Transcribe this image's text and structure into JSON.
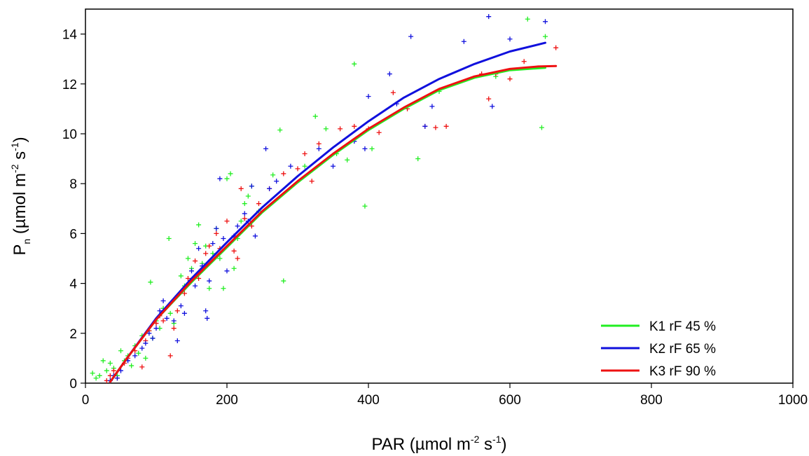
{
  "chart_data": {
    "type": "scatter",
    "xlabel": {
      "base": "PAR (µmol m",
      "exp1": "-2",
      "mid": " s",
      "exp2": "-1",
      "end": ")"
    },
    "ylabel": {
      "p": "P",
      "sub": "n",
      "rest": " (µmol m",
      "exp1": "-2",
      "mid": " s",
      "exp2": "-1",
      "end": ")"
    },
    "xlim": [
      0,
      1000
    ],
    "ylim": [
      0,
      15
    ],
    "xticks": [
      "0",
      "200",
      "400",
      "600",
      "800",
      "1000"
    ],
    "yticks": [
      "0",
      "2",
      "4",
      "6",
      "8",
      "10",
      "12",
      "14"
    ],
    "grid": false,
    "legend_position": "bottom-right",
    "series": [
      {
        "name": "K1 rF 45 %",
        "color": "#22ee22",
        "curve": [
          [
            35,
            0.05
          ],
          [
            60,
            1.05
          ],
          [
            100,
            2.55
          ],
          [
            150,
            4.05
          ],
          [
            200,
            5.45
          ],
          [
            250,
            6.85
          ],
          [
            300,
            8.05
          ],
          [
            350,
            9.15
          ],
          [
            400,
            10.15
          ],
          [
            450,
            11.0
          ],
          [
            500,
            11.75
          ],
          [
            550,
            12.25
          ],
          [
            600,
            12.55
          ],
          [
            650,
            12.65
          ]
        ],
        "points": [
          [
            10,
            0.4
          ],
          [
            15,
            0.2
          ],
          [
            20,
            0.3
          ],
          [
            25,
            0.9
          ],
          [
            30,
            0.5
          ],
          [
            35,
            0.8
          ],
          [
            40,
            0.6
          ],
          [
            45,
            0.3
          ],
          [
            50,
            1.3
          ],
          [
            55,
            0.9
          ],
          [
            60,
            1.1
          ],
          [
            65,
            0.7
          ],
          [
            70,
            1.5
          ],
          [
            75,
            1.2
          ],
          [
            80,
            1.9
          ],
          [
            85,
            1.0
          ],
          [
            90,
            2.1
          ],
          [
            92,
            4.05
          ],
          [
            95,
            1.8
          ],
          [
            100,
            2.5
          ],
          [
            105,
            2.2
          ],
          [
            110,
            3.0
          ],
          [
            118,
            5.8
          ],
          [
            120,
            2.8
          ],
          [
            125,
            2.4
          ],
          [
            130,
            3.5
          ],
          [
            135,
            4.3
          ],
          [
            140,
            3.9
          ],
          [
            145,
            5.0
          ],
          [
            150,
            4.6
          ],
          [
            155,
            5.6
          ],
          [
            160,
            6.35
          ],
          [
            165,
            4.8
          ],
          [
            170,
            5.5
          ],
          [
            175,
            3.8
          ],
          [
            180,
            5.2
          ],
          [
            185,
            6.2
          ],
          [
            190,
            5.0
          ],
          [
            195,
            3.8
          ],
          [
            200,
            8.2
          ],
          [
            205,
            8.4
          ],
          [
            210,
            4.6
          ],
          [
            215,
            5.8
          ],
          [
            220,
            6.5
          ],
          [
            225,
            7.2
          ],
          [
            230,
            7.5
          ],
          [
            235,
            7.9
          ],
          [
            245,
            6.9
          ],
          [
            265,
            8.35
          ],
          [
            275,
            10.15
          ],
          [
            280,
            4.1
          ],
          [
            310,
            8.7
          ],
          [
            325,
            10.7
          ],
          [
            340,
            10.2
          ],
          [
            355,
            9.2
          ],
          [
            370,
            8.95
          ],
          [
            380,
            12.8
          ],
          [
            395,
            7.1
          ],
          [
            405,
            9.4
          ],
          [
            470,
            9.0
          ],
          [
            500,
            11.7
          ],
          [
            580,
            12.3
          ],
          [
            625,
            14.6
          ],
          [
            645,
            10.25
          ],
          [
            650,
            13.9
          ]
        ]
      },
      {
        "name": "K2 rF 65 %",
        "color": "#1010dd",
        "curve": [
          [
            35,
            0.05
          ],
          [
            60,
            1.05
          ],
          [
            100,
            2.6
          ],
          [
            150,
            4.2
          ],
          [
            200,
            5.65
          ],
          [
            250,
            7.05
          ],
          [
            300,
            8.3
          ],
          [
            350,
            9.45
          ],
          [
            400,
            10.5
          ],
          [
            450,
            11.45
          ],
          [
            500,
            12.2
          ],
          [
            550,
            12.8
          ],
          [
            600,
            13.3
          ],
          [
            650,
            13.65
          ]
        ],
        "points": [
          [
            35,
            0.1
          ],
          [
            40,
            0.3
          ],
          [
            45,
            0.2
          ],
          [
            50,
            0.5
          ],
          [
            60,
            0.9
          ],
          [
            70,
            1.1
          ],
          [
            80,
            1.4
          ],
          [
            85,
            1.6
          ],
          [
            90,
            2.0
          ],
          [
            95,
            1.8
          ],
          [
            100,
            2.2
          ],
          [
            105,
            2.9
          ],
          [
            110,
            3.3
          ],
          [
            115,
            2.6
          ],
          [
            125,
            2.5
          ],
          [
            130,
            1.7
          ],
          [
            135,
            3.1
          ],
          [
            140,
            2.8
          ],
          [
            150,
            4.5
          ],
          [
            155,
            3.9
          ],
          [
            160,
            5.4
          ],
          [
            165,
            4.7
          ],
          [
            170,
            2.9
          ],
          [
            172,
            2.6
          ],
          [
            175,
            4.1
          ],
          [
            180,
            5.6
          ],
          [
            185,
            6.2
          ],
          [
            190,
            8.2
          ],
          [
            195,
            5.8
          ],
          [
            200,
            4.5
          ],
          [
            210,
            5.9
          ],
          [
            215,
            6.3
          ],
          [
            225,
            6.8
          ],
          [
            230,
            6.5
          ],
          [
            235,
            7.9
          ],
          [
            240,
            5.9
          ],
          [
            255,
            9.4
          ],
          [
            260,
            7.8
          ],
          [
            270,
            8.1
          ],
          [
            290,
            8.7
          ],
          [
            330,
            9.4
          ],
          [
            350,
            8.7
          ],
          [
            380,
            9.7
          ],
          [
            395,
            9.4
          ],
          [
            400,
            11.5
          ],
          [
            430,
            12.4
          ],
          [
            440,
            11.2
          ],
          [
            460,
            13.9
          ],
          [
            480,
            10.3
          ],
          [
            490,
            11.1
          ],
          [
            535,
            13.7
          ],
          [
            570,
            14.7
          ],
          [
            575,
            11.1
          ],
          [
            600,
            13.8
          ],
          [
            650,
            14.5
          ]
        ]
      },
      {
        "name": "K3 rF 90 %",
        "color": "#ee1111",
        "curve": [
          [
            35,
            0.05
          ],
          [
            60,
            1.05
          ],
          [
            100,
            2.55
          ],
          [
            150,
            4.1
          ],
          [
            200,
            5.5
          ],
          [
            250,
            6.9
          ],
          [
            300,
            8.1
          ],
          [
            350,
            9.2
          ],
          [
            400,
            10.2
          ],
          [
            450,
            11.05
          ],
          [
            500,
            11.8
          ],
          [
            550,
            12.3
          ],
          [
            600,
            12.6
          ],
          [
            640,
            12.7
          ],
          [
            665,
            12.72
          ]
        ],
        "points": [
          [
            30,
            0.1
          ],
          [
            35,
            0.3
          ],
          [
            40,
            0.5
          ],
          [
            45,
            0.2
          ],
          [
            55,
            0.8
          ],
          [
            60,
            1.0
          ],
          [
            70,
            1.3
          ],
          [
            80,
            0.65
          ],
          [
            85,
            1.7
          ],
          [
            90,
            2.1
          ],
          [
            100,
            2.4
          ],
          [
            105,
            2.7
          ],
          [
            110,
            2.5
          ],
          [
            120,
            1.1
          ],
          [
            125,
            2.2
          ],
          [
            130,
            2.9
          ],
          [
            140,
            3.6
          ],
          [
            145,
            4.2
          ],
          [
            155,
            4.9
          ],
          [
            160,
            4.2
          ],
          [
            170,
            5.2
          ],
          [
            175,
            5.5
          ],
          [
            185,
            6.0
          ],
          [
            190,
            5.4
          ],
          [
            200,
            6.5
          ],
          [
            210,
            5.3
          ],
          [
            215,
            5.0
          ],
          [
            220,
            7.8
          ],
          [
            225,
            6.6
          ],
          [
            235,
            6.3
          ],
          [
            245,
            7.2
          ],
          [
            260,
            7.8
          ],
          [
            280,
            8.4
          ],
          [
            300,
            8.6
          ],
          [
            310,
            9.2
          ],
          [
            320,
            8.1
          ],
          [
            330,
            9.6
          ],
          [
            360,
            10.2
          ],
          [
            380,
            10.3
          ],
          [
            400,
            10.2
          ],
          [
            415,
            10.05
          ],
          [
            435,
            11.65
          ],
          [
            455,
            11.0
          ],
          [
            480,
            10.3
          ],
          [
            495,
            10.25
          ],
          [
            510,
            10.3
          ],
          [
            560,
            12.4
          ],
          [
            570,
            11.4
          ],
          [
            580,
            12.4
          ],
          [
            600,
            12.2
          ],
          [
            620,
            12.9
          ],
          [
            665,
            13.45
          ]
        ]
      }
    ]
  }
}
